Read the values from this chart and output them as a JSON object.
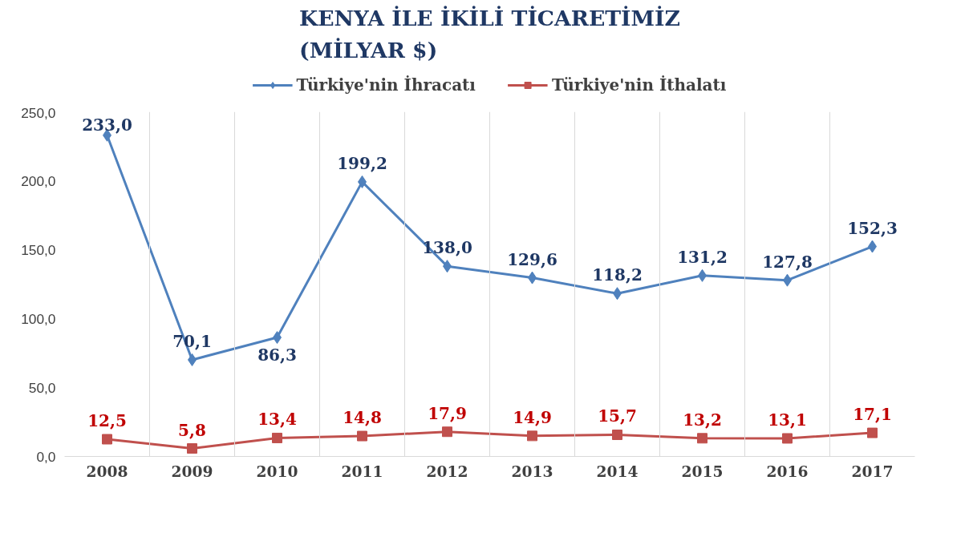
{
  "chart_data": {
    "type": "line",
    "title": "KENYA İLE İKİLİ TİCARETİMİZ\n(MİLYAR $)",
    "categories": [
      "2008",
      "2009",
      "2010",
      "2011",
      "2012",
      "2013",
      "2014",
      "2015",
      "2016",
      "2017"
    ],
    "series": [
      {
        "name": "Türkiye'nin İhracatı",
        "color": "#4f81bd",
        "marker": "diamond",
        "values": [
          233.0,
          70.1,
          86.3,
          199.2,
          138.0,
          129.6,
          118.2,
          131.2,
          127.8,
          152.3
        ],
        "value_labels": [
          "233,0",
          "70,1",
          "86,3",
          "199,2",
          "138,0",
          "129,6",
          "118,2",
          "131,2",
          "127,8",
          "152,3"
        ]
      },
      {
        "name": "Türkiye'nin İthalatı",
        "color": "#c0504d",
        "marker": "square",
        "values": [
          12.5,
          5.8,
          13.4,
          14.8,
          17.9,
          14.9,
          15.7,
          13.2,
          13.1,
          17.1
        ],
        "value_labels": [
          "12,5",
          "5,8",
          "13,4",
          "14,8",
          "17,9",
          "14,9",
          "15,7",
          "13,2",
          "13,1",
          "17,1"
        ]
      }
    ],
    "ylim": [
      0,
      250
    ],
    "yticks": [
      {
        "value": 0,
        "label": "0,0"
      },
      {
        "value": 50,
        "label": "50,0"
      },
      {
        "value": 100,
        "label": "100,0"
      },
      {
        "value": 150,
        "label": "150,0"
      },
      {
        "value": 200,
        "label": "200,0"
      },
      {
        "value": 250,
        "label": "250,0"
      }
    ],
    "grid": "x",
    "legend": "top",
    "line_style": "solid"
  }
}
